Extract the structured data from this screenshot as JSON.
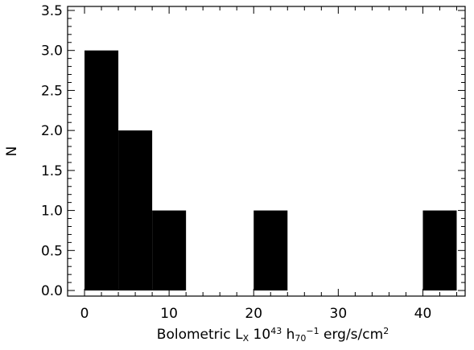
{
  "chart_data": {
    "type": "bar",
    "title": "",
    "xlabel": {
      "parts": [
        {
          "text": "Bolometric L",
          "style": "normal"
        },
        {
          "text": "X",
          "style": "sub"
        },
        {
          "text": " 10",
          "style": "normal"
        },
        {
          "text": "43",
          "style": "sup"
        },
        {
          "text": " h",
          "style": "normal"
        },
        {
          "text": "70",
          "style": "sub"
        },
        {
          "text": "−1",
          "style": "sup"
        },
        {
          "text": " erg/s/cm",
          "style": "normal"
        },
        {
          "text": "2",
          "style": "sup"
        }
      ]
    },
    "ylabel": "N",
    "xlim": [
      -2,
      45
    ],
    "ylim": [
      -0.07,
      3.55
    ],
    "x_ticks": [
      0,
      10,
      20,
      30,
      40
    ],
    "x_tick_labels": [
      "0",
      "10",
      "20",
      "30",
      "40"
    ],
    "y_ticks": [
      0.0,
      0.5,
      1.0,
      1.5,
      2.0,
      2.5,
      3.0,
      3.5
    ],
    "y_tick_labels": [
      "0.0",
      "0.5",
      "1.0",
      "1.5",
      "2.0",
      "2.5",
      "3.0",
      "3.5"
    ],
    "bins": [
      {
        "x0": 0,
        "x1": 4,
        "count": 3
      },
      {
        "x0": 4,
        "x1": 8,
        "count": 2
      },
      {
        "x0": 8,
        "x1": 12,
        "count": 1
      },
      {
        "x0": 20,
        "x1": 24,
        "count": 1
      },
      {
        "x0": 40,
        "x1": 44,
        "count": 1
      }
    ],
    "bar_color": "#000000",
    "grid": false,
    "legend": false
  }
}
